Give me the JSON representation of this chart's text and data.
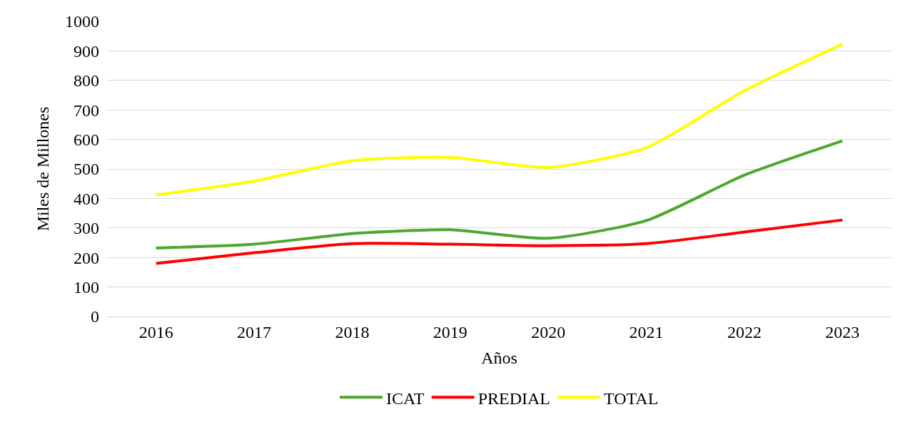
{
  "chart_data": {
    "type": "line",
    "xlabel": "Años",
    "ylabel": "Miles de Millones",
    "categories": [
      "2016",
      "2017",
      "2018",
      "2019",
      "2020",
      "2021",
      "2022",
      "2023"
    ],
    "series": [
      {
        "name": "ICAT",
        "color": "#4ea72e",
        "values": [
          232,
          245,
          281,
          294,
          265,
          325,
          479,
          595
        ]
      },
      {
        "name": "PREDIAL",
        "color": "#ff0000",
        "values": [
          180,
          216,
          247,
          245,
          240,
          247,
          286,
          327
        ]
      },
      {
        "name": "TOTAL",
        "color": "#ffff00",
        "values": [
          412,
          459,
          528,
          539,
          505,
          572,
          765,
          923
        ]
      }
    ],
    "ylim": [
      0,
      1000
    ],
    "yticks": [
      0,
      100,
      200,
      300,
      400,
      500,
      600,
      700,
      800,
      900,
      1000
    ],
    "grid": "y",
    "legend": "bottom",
    "marker": "none",
    "line_style": "solid"
  }
}
